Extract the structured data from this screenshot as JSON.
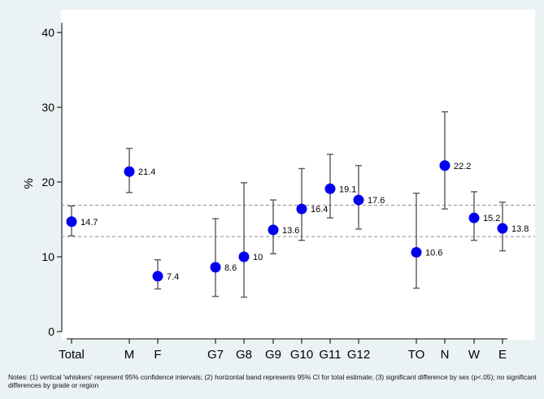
{
  "chart_data": {
    "type": "scatter",
    "ylabel": "%",
    "ylim": [
      0,
      40
    ],
    "yticks": [
      0,
      10,
      20,
      30,
      40
    ],
    "categories": [
      "Total",
      "M",
      "F",
      "G7",
      "G8",
      "G9",
      "G10",
      "G11",
      "G12",
      "TO",
      "N",
      "W",
      "E"
    ],
    "values": [
      14.7,
      21.4,
      7.4,
      8.6,
      10,
      13.6,
      16.4,
      19.1,
      17.6,
      10.6,
      22.2,
      15.2,
      13.8
    ],
    "value_labels": [
      "14.7",
      "21.4",
      "7.4",
      "8.6",
      "10",
      "13.6",
      "16.4",
      "19.1",
      "17.6",
      "10.6",
      "22.2",
      "15.2",
      "13.8"
    ],
    "ci_lower": [
      12.8,
      18.6,
      5.7,
      4.7,
      4.6,
      10.4,
      12.2,
      15.2,
      13.7,
      5.8,
      16.4,
      12.2,
      10.8
    ],
    "ci_upper": [
      16.8,
      24.5,
      9.6,
      15.1,
      19.9,
      17.6,
      21.8,
      23.7,
      22.2,
      18.5,
      29.4,
      18.7,
      17.3
    ],
    "reference_band": [
      12.7,
      16.9
    ],
    "grid": false,
    "legend": "none",
    "colors": {
      "marker": "#0000ee",
      "whisker": "#5a5a5a",
      "band_line": "#8c8c8c",
      "plot_bg": "#ffffff",
      "page_bg": "#eaf2f3"
    }
  },
  "notes": "Notes: (1) vertical 'whiskers' represent 95% confidence intervals; (2) horizontal band represents 95% CI for total estimate; (3) significant difference by sex (p<.05); no significant differences by grade or region"
}
